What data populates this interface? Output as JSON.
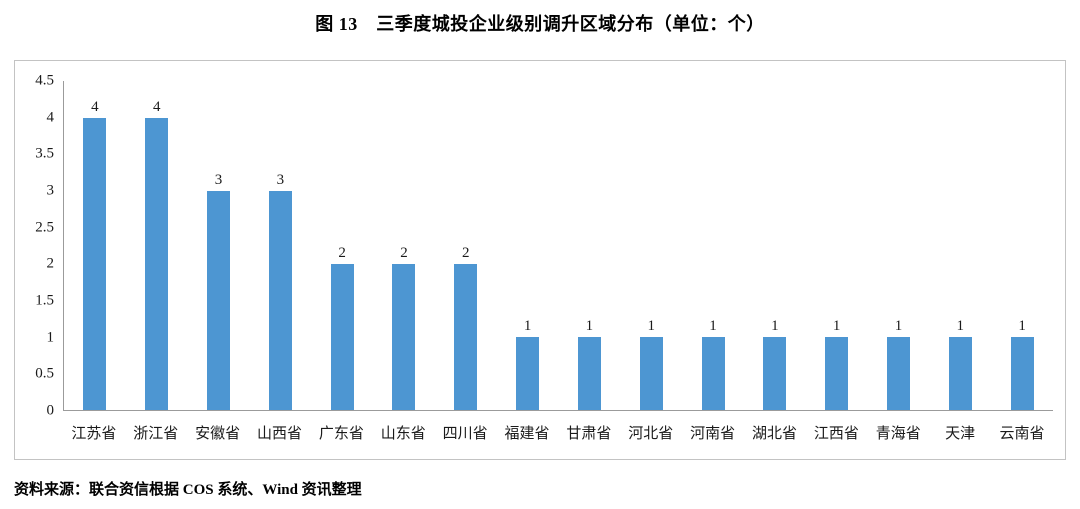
{
  "title": "图 13　三季度城投企业级别调升区域分布（单位：个）",
  "source": "资料来源：联合资信根据 COS 系统、Wind 资讯整理",
  "colors": {
    "bar": "#4D96D2",
    "frame_border": "#c3c3c3",
    "axis_line": "#9b9b9b"
  },
  "chart_data": {
    "type": "bar",
    "title": "图 13　三季度城投企业级别调升区域分布（单位：个）",
    "categories": [
      "江苏省",
      "浙江省",
      "安徽省",
      "山西省",
      "广东省",
      "山东省",
      "四川省",
      "福建省",
      "甘肃省",
      "河北省",
      "河南省",
      "湖北省",
      "江西省",
      "青海省",
      "天津",
      "云南省"
    ],
    "values": [
      4,
      4,
      3,
      3,
      2,
      2,
      2,
      1,
      1,
      1,
      1,
      1,
      1,
      1,
      1,
      1
    ],
    "xlabel": "",
    "ylabel": "",
    "ylim": [
      0,
      4.5
    ],
    "ytick_step": 0.5,
    "yticks": [
      0,
      0.5,
      1,
      1.5,
      2,
      2.5,
      3,
      3.5,
      4,
      4.5
    ],
    "grid": false,
    "legend": false,
    "data_labels": true,
    "bar_color": "#4D96D2"
  }
}
